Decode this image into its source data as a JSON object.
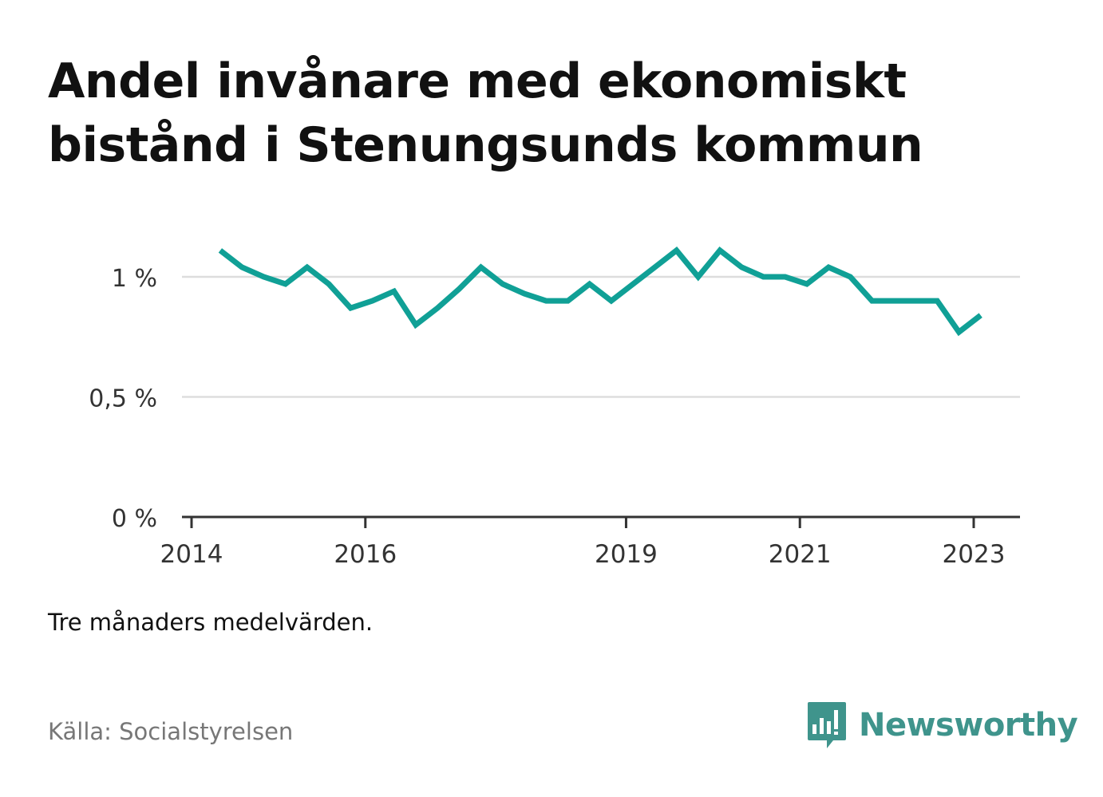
{
  "title": "Andel invånare med ekonomiskt bistånd i Stenungsunds kommun",
  "note": "Tre månaders medelvärden.",
  "source": "Källa: Socialstyrelsen",
  "brand": {
    "name": "Newsworthy",
    "color": "#3f948c",
    "icon": "bar-chart-speech-bubble-icon"
  },
  "chart_data": {
    "type": "line",
    "title": "Andel invånare med ekonomiskt bistånd i Stenungsunds kommun",
    "xlabel": "",
    "ylabel": "",
    "ylim": [
      0,
      1.2
    ],
    "yticks": [
      {
        "value": 0,
        "label": "0 %"
      },
      {
        "value": 0.5,
        "label": "0,5 %"
      },
      {
        "value": 1,
        "label": "1 %"
      }
    ],
    "xlim": [
      2013.95,
      2023.25
    ],
    "xticks": [
      {
        "value": 2014,
        "label": "2014"
      },
      {
        "value": 2016,
        "label": "2016"
      },
      {
        "value": 2019,
        "label": "2019"
      },
      {
        "value": 2021,
        "label": "2021"
      },
      {
        "value": 2023,
        "label": "2023"
      }
    ],
    "grid": true,
    "line_color": "#10a096",
    "series": [
      {
        "values": [
          [
            2014.33,
            1.11
          ],
          [
            2014.58,
            1.04
          ],
          [
            2014.83,
            1.0
          ],
          [
            2015.08,
            0.97
          ],
          [
            2015.33,
            1.04
          ],
          [
            2015.58,
            0.97
          ],
          [
            2015.83,
            0.87
          ],
          [
            2016.08,
            0.9
          ],
          [
            2016.33,
            0.94
          ],
          [
            2016.58,
            0.8
          ],
          [
            2016.83,
            0.87
          ],
          [
            2017.08,
            0.95
          ],
          [
            2017.33,
            1.04
          ],
          [
            2017.58,
            0.97
          ],
          [
            2017.83,
            0.93
          ],
          [
            2018.08,
            0.9
          ],
          [
            2018.33,
            0.9
          ],
          [
            2018.58,
            0.97
          ],
          [
            2018.83,
            0.9
          ],
          [
            2019.08,
            0.97
          ],
          [
            2019.33,
            1.04
          ],
          [
            2019.58,
            1.11
          ],
          [
            2019.83,
            1.0
          ],
          [
            2020.08,
            1.11
          ],
          [
            2020.33,
            1.04
          ],
          [
            2020.58,
            1.0
          ],
          [
            2020.83,
            1.0
          ],
          [
            2021.08,
            0.97
          ],
          [
            2021.33,
            1.04
          ],
          [
            2021.58,
            1.0
          ],
          [
            2021.83,
            0.9
          ],
          [
            2022.08,
            0.9
          ],
          [
            2022.33,
            0.9
          ],
          [
            2022.58,
            0.9
          ],
          [
            2022.83,
            0.77
          ],
          [
            2023.08,
            0.84
          ]
        ]
      }
    ]
  }
}
